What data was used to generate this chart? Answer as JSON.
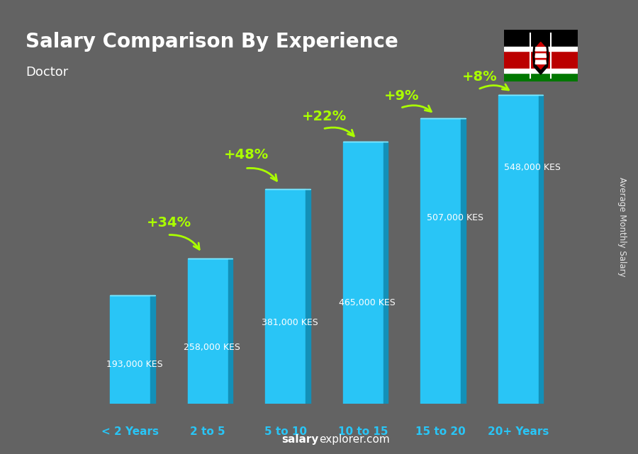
{
  "title": "Salary Comparison By Experience",
  "subtitle": "Doctor",
  "categories": [
    "< 2 Years",
    "2 to 5",
    "5 to 10",
    "10 to 15",
    "15 to 20",
    "20+ Years"
  ],
  "values": [
    193000,
    258000,
    381000,
    465000,
    507000,
    548000
  ],
  "value_labels": [
    "193,000 KES",
    "258,000 KES",
    "381,000 KES",
    "465,000 KES",
    "507,000 KES",
    "548,000 KES"
  ],
  "pct_labels": [
    "+34%",
    "+48%",
    "+22%",
    "+9%",
    "+8%"
  ],
  "bar_color_face": "#29c5f6",
  "bar_color_right": "#1390b8",
  "bar_color_top": "#7ee8ff",
  "bg_color": "#636363",
  "pct_color": "#aaff00",
  "xlabel_color": "#29c5f6",
  "ylabel_text": "Average Monthly Salary",
  "ylim_max": 620000,
  "val_label_positions": [
    [
      0,
      70000,
      -0.05,
      "left"
    ],
    [
      1,
      100000,
      -0.05,
      "left"
    ],
    [
      2,
      145000,
      -0.05,
      "left"
    ],
    [
      3,
      180000,
      -0.05,
      "left"
    ],
    [
      4,
      330000,
      0.08,
      "left"
    ],
    [
      5,
      420000,
      0.08,
      "left"
    ]
  ],
  "pct_positions": [
    [
      0.5,
      310000,
      0.48,
      300000,
      0.92,
      268000
    ],
    [
      1.5,
      430000,
      1.48,
      418000,
      1.92,
      390000
    ],
    [
      2.5,
      498000,
      2.48,
      488000,
      2.92,
      470000
    ],
    [
      3.5,
      535000,
      3.48,
      525000,
      3.92,
      514000
    ],
    [
      4.5,
      568000,
      4.48,
      558000,
      4.92,
      553000
    ]
  ]
}
